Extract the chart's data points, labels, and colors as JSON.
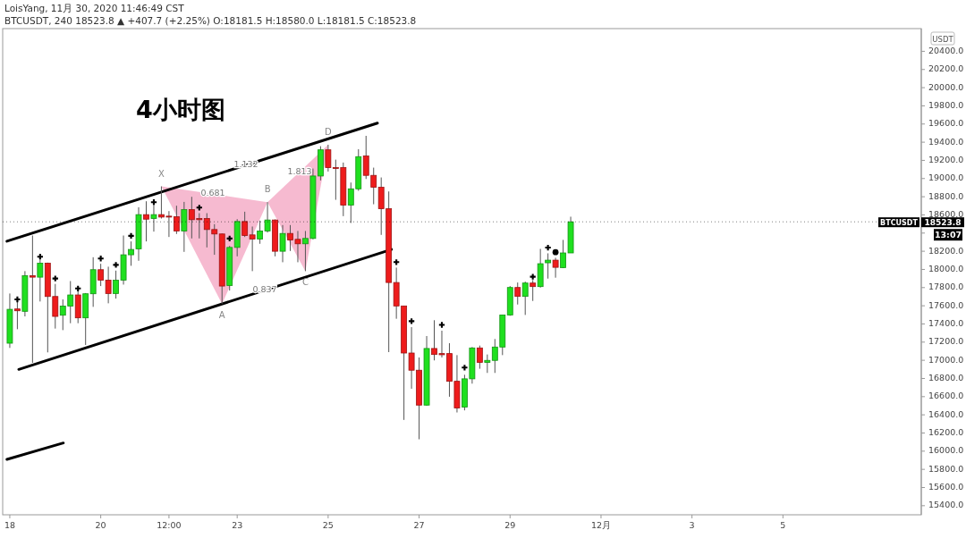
{
  "chart_data": {
    "type": "candlestick",
    "title": "LoisYang, 11月 30, 2020 11:46:49 CST",
    "subtitle": "BTCUSDT, 240 18523.8 ▲ +407.7 (+2.25%) O:18181.5 H:18580.0 L:18181.5 C:18523.8",
    "ylabel": "USDT",
    "x": [
      "2020-11-18T00:00",
      "2020-11-18T04:00",
      "2020-11-18T08:00",
      "2020-11-18T12:00",
      "2020-11-18T16:00",
      "2020-11-18T20:00",
      "2020-11-19T00:00",
      "2020-11-19T04:00",
      "2020-11-19T08:00",
      "2020-11-19T12:00",
      "2020-11-19T16:00",
      "2020-11-19T20:00",
      "2020-11-20T00:00",
      "2020-11-20T04:00",
      "2020-11-20T08:00",
      "2020-11-20T12:00",
      "2020-11-20T16:00",
      "2020-11-20T20:00",
      "2020-11-21T00:00",
      "2020-11-21T04:00",
      "2020-11-21T08:00",
      "2020-11-21T12:00",
      "2020-11-21T16:00",
      "2020-11-21T20:00",
      "2020-11-22T00:00",
      "2020-11-22T04:00",
      "2020-11-22T08:00",
      "2020-11-22T12:00",
      "2020-11-22T16:00",
      "2020-11-22T20:00",
      "2020-11-23T00:00",
      "2020-11-23T04:00",
      "2020-11-23T08:00",
      "2020-11-23T12:00",
      "2020-11-23T16:00",
      "2020-11-23T20:00",
      "2020-11-24T00:00",
      "2020-11-24T04:00",
      "2020-11-24T08:00",
      "2020-11-24T12:00",
      "2020-11-24T16:00",
      "2020-11-24T20:00",
      "2020-11-25T00:00",
      "2020-11-25T04:00",
      "2020-11-25T08:00",
      "2020-11-25T12:00",
      "2020-11-25T16:00",
      "2020-11-25T20:00",
      "2020-11-26T00:00",
      "2020-11-26T04:00",
      "2020-11-26T08:00",
      "2020-11-26T12:00",
      "2020-11-26T16:00",
      "2020-11-26T20:00",
      "2020-11-27T00:00",
      "2020-11-27T04:00",
      "2020-11-27T08:00",
      "2020-11-27T12:00",
      "2020-11-27T16:00",
      "2020-11-27T20:00",
      "2020-11-28T00:00",
      "2020-11-28T04:00",
      "2020-11-28T08:00",
      "2020-11-28T12:00",
      "2020-11-28T16:00",
      "2020-11-28T20:00",
      "2020-11-29T00:00",
      "2020-11-29T04:00",
      "2020-11-29T08:00",
      "2020-11-29T12:00",
      "2020-11-29T16:00",
      "2020-11-29T20:00",
      "2020-11-30T00:00",
      "2020-11-30T04:00",
      "2020-11-30T08:00"
    ],
    "ohlc": [
      [
        17188,
        17735,
        17136,
        17561
      ],
      [
        17565,
        17686,
        17342,
        17545
      ],
      [
        17539,
        17981,
        17483,
        17931
      ],
      [
        17931,
        18373,
        16972,
        17915
      ],
      [
        17915,
        18111,
        17647,
        18069
      ],
      [
        18069,
        18075,
        17087,
        17702
      ],
      [
        17702,
        17840,
        17349,
        17483
      ],
      [
        17496,
        17670,
        17332,
        17597
      ],
      [
        17597,
        17872,
        17408,
        17719
      ],
      [
        17719,
        17774,
        17408,
        17467
      ],
      [
        17467,
        17740,
        17169,
        17732
      ],
      [
        17732,
        18134,
        17588,
        17997
      ],
      [
        17997,
        18062,
        17817,
        17882
      ],
      [
        17882,
        18030,
        17627,
        17735
      ],
      [
        17735,
        17987,
        17679,
        17882
      ],
      [
        17882,
        18373,
        17833,
        18161
      ],
      [
        18161,
        18308,
        18040,
        18220
      ],
      [
        18226,
        18684,
        18095,
        18603
      ],
      [
        18603,
        18750,
        18308,
        18553
      ],
      [
        18560,
        18734,
        18416,
        18603
      ],
      [
        18603,
        18914,
        18560,
        18576
      ],
      [
        18586,
        18642,
        18357,
        18576
      ],
      [
        18580,
        18701,
        18390,
        18423
      ],
      [
        18423,
        18743,
        18193,
        18658
      ],
      [
        18658,
        18799,
        18341,
        18547
      ],
      [
        18560,
        18619,
        18341,
        18547
      ],
      [
        18560,
        18619,
        18242,
        18439
      ],
      [
        18439,
        18498,
        18161,
        18390
      ],
      [
        18390,
        18395,
        17620,
        17817
      ],
      [
        17823,
        18259,
        17768,
        18242
      ],
      [
        18242,
        18553,
        18144,
        18527
      ],
      [
        18527,
        18635,
        18357,
        18373
      ],
      [
        18380,
        18472,
        17981,
        18334
      ],
      [
        18334,
        18537,
        18282,
        18423
      ],
      [
        18423,
        18740,
        18406,
        18544
      ],
      [
        18544,
        18550,
        18144,
        18200
      ],
      [
        18200,
        18488,
        18079,
        18396
      ],
      [
        18396,
        18488,
        18203,
        18324
      ],
      [
        18331,
        18423,
        18079,
        18282
      ],
      [
        18282,
        18423,
        17981,
        18341
      ],
      [
        18341,
        19110,
        18330,
        19028
      ],
      [
        19028,
        19356,
        18979,
        19316
      ],
      [
        19316,
        19372,
        19077,
        19120
      ],
      [
        19120,
        19208,
        18766,
        19113
      ],
      [
        19120,
        19176,
        18586,
        18707
      ],
      [
        18707,
        18956,
        18511,
        18887
      ],
      [
        18887,
        19323,
        18865,
        19241
      ],
      [
        19248,
        19470,
        18995,
        19035
      ],
      [
        19035,
        19120,
        18717,
        18904
      ],
      [
        18904,
        19012,
        18380,
        18668
      ],
      [
        18668,
        18858,
        17090,
        17856
      ],
      [
        17856,
        18020,
        17457,
        17598
      ],
      [
        17598,
        17600,
        16344,
        17080
      ],
      [
        17080,
        17365,
        16687,
        16891
      ],
      [
        16891,
        17031,
        16131,
        16507
      ],
      [
        16507,
        17267,
        16500,
        17130
      ],
      [
        17130,
        17441,
        16999,
        17064
      ],
      [
        17074,
        17326,
        17031,
        17061
      ],
      [
        17074,
        17188,
        16599,
        16769
      ],
      [
        16769,
        17057,
        16426,
        16475
      ],
      [
        16485,
        16841,
        16449,
        16796
      ],
      [
        16796,
        17146,
        16743,
        17136
      ],
      [
        17136,
        17162,
        16907,
        16976
      ],
      [
        16976,
        17064,
        16861,
        16999
      ],
      [
        16999,
        17234,
        16861,
        17146
      ],
      [
        17146,
        17500,
        17057,
        17499
      ],
      [
        17499,
        17817,
        17490,
        17801
      ],
      [
        17801,
        17856,
        17614,
        17703
      ],
      [
        17703,
        17866,
        17499,
        17850
      ],
      [
        17850,
        17883,
        17653,
        17811
      ],
      [
        17811,
        18226,
        17800,
        18063
      ],
      [
        18073,
        18177,
        17899,
        18102
      ],
      [
        18102,
        18128,
        17909,
        18023
      ],
      [
        18020,
        18325,
        18014,
        18181.5
      ],
      [
        18181.5,
        18580,
        18181.5,
        18523.8
      ]
    ],
    "colors": [
      "#1fe01f",
      "#ee1c1c",
      "#1fe01f",
      "#ee1c1c",
      "#1fe01f",
      "#ee1c1c",
      "#ee1c1c",
      "#1fe01f",
      "#1fe01f",
      "#ee1c1c",
      "#1fe01f",
      "#1fe01f",
      "#ee1c1c",
      "#ee1c1c",
      "#1fe01f",
      "#1fe01f",
      "#1fe01f",
      "#1fe01f",
      "#ee1c1c",
      "#1fe01f",
      "#ee1c1c",
      "#ee1c1c",
      "#ee1c1c",
      "#1fe01f",
      "#ee1c1c",
      "#ee1c1c",
      "#ee1c1c",
      "#ee1c1c",
      "#ee1c1c",
      "#1fe01f",
      "#1fe01f",
      "#ee1c1c",
      "#ee1c1c",
      "#1fe01f",
      "#1fe01f",
      "#ee1c1c",
      "#1fe01f",
      "#ee1c1c",
      "#ee1c1c",
      "#1fe01f",
      "#1fe01f",
      "#1fe01f",
      "#ee1c1c",
      "#ee1c1c",
      "#ee1c1c",
      "#1fe01f",
      "#1fe01f",
      "#ee1c1c",
      "#ee1c1c",
      "#ee1c1c",
      "#ee1c1c",
      "#ee1c1c",
      "#ee1c1c",
      "#ee1c1c",
      "#ee1c1c",
      "#1fe01f",
      "#ee1c1c",
      "#ee1c1c",
      "#ee1c1c",
      "#ee1c1c",
      "#1fe01f",
      "#1fe01f",
      "#ee1c1c",
      "#1fe01f",
      "#1fe01f",
      "#1fe01f",
      "#1fe01f",
      "#ee1c1c",
      "#1fe01f",
      "#ee1c1c",
      "#1fe01f",
      "#1fe01f",
      "#ee1c1c",
      "#1fe01f",
      "#1fe01f"
    ],
    "series": [
      {
        "type": "line",
        "color": "#000000",
        "x": [
          "2020-11-17T22:30",
          "2020-11-26T02:00"
        ],
        "values": [
          18310,
          19610
        ]
      },
      {
        "type": "line",
        "color": "#000000",
        "x": [
          "2020-11-18T04:45",
          "2020-11-26T09:25"
        ],
        "values": [
          16900,
          18220
        ]
      },
      {
        "type": "line",
        "color": "#000000",
        "x": [
          "2020-11-17T22:30",
          "2020-11-19T04:15"
        ],
        "values": [
          15910,
          16090
        ]
      },
      {
        "type": "scatter",
        "marker": "cross",
        "color": "#000000",
        "x": [
          "2020-11-18T04:00",
          "2020-11-18T16:00",
          "2020-11-19T00:00",
          "2020-11-19T12:00",
          "2020-11-20T00:00",
          "2020-11-20T08:00",
          "2020-11-20T16:00",
          "2020-11-21T04:00",
          "2020-11-22T04:00",
          "2020-11-22T20:00",
          "2020-11-26T12:00",
          "2020-11-26T20:00",
          "2020-11-27T12:00",
          "2020-11-28T00:00",
          "2020-11-29T12:00",
          "2020-11-29T20:00"
        ],
        "values": [
          17670,
          18140,
          17900,
          17790,
          18120,
          18050,
          18370,
          18740,
          18680,
          18340,
          18080,
          17430,
          17390,
          16920,
          17920,
          18240
        ]
      },
      {
        "type": "scatter",
        "marker": "circle",
        "color": "#000000",
        "x": [
          "2020-11-30T00:00"
        ],
        "values": [
          18190
        ]
      }
    ],
    "annotations": [
      {
        "text": "X",
        "x": "2020-11-21T08:00",
        "y": 18914
      },
      {
        "text": "A",
        "x": "2020-11-22T16:00",
        "y": 17620
      },
      {
        "text": "B",
        "x": "2020-11-23T16:00",
        "y": 18740
      },
      {
        "text": "C",
        "x": "2020-11-24T12:00",
        "y": 17981
      },
      {
        "text": "D",
        "x": "2020-11-25T00:00",
        "y": 19372
      },
      "0.681",
      "1.132",
      "1.813",
      "0.837",
      "4小时图",
      "18523.8",
      "13:07"
    ],
    "ref_lines": [
      {
        "axis": "y",
        "value": 18523.8,
        "label": "BTCUSDT",
        "line_style": "dotted"
      }
    ],
    "xlim": [
      "2020-11-17T20:15",
      "2020-12-08T01:00"
    ],
    "xticks": [
      {
        "value": "2020-11-18",
        "label": "18"
      },
      {
        "value": "2020-11-20",
        "label": "20"
      },
      {
        "value": "2020-11-21T12:00",
        "label": "12:00"
      },
      {
        "value": "2020-11-23",
        "label": "23"
      },
      {
        "value": "2020-11-25",
        "label": "25"
      },
      {
        "value": "2020-11-27",
        "label": "27"
      },
      {
        "value": "2020-11-29",
        "label": "29"
      },
      {
        "value": "2020-12-01",
        "label": "12月"
      },
      {
        "value": "2020-12-03",
        "label": "3"
      },
      {
        "value": "2020-12-05",
        "label": "5"
      }
    ],
    "ylim": [
      15300,
      20650
    ],
    "yticks": [
      {
        "value": 15400,
        "label": "15400.0"
      },
      {
        "value": 15600,
        "label": "15600.0"
      },
      {
        "value": 15800,
        "label": "15800.0"
      },
      {
        "value": 16000,
        "label": "16000.0"
      },
      {
        "value": 16200,
        "label": "16200.0"
      },
      {
        "value": 16400,
        "label": "16400.0"
      },
      {
        "value": 16600,
        "label": "16600.0"
      },
      {
        "value": 16800,
        "label": "16800.0"
      },
      {
        "value": 17000,
        "label": "17000.0"
      },
      {
        "value": 17200,
        "label": "17200.0"
      },
      {
        "value": 17400,
        "label": "17400.0"
      },
      {
        "value": 17600,
        "label": "17600.0"
      },
      {
        "value": 17800,
        "label": "17800.0"
      },
      {
        "value": 18000,
        "label": "18000.0"
      },
      {
        "value": 18200,
        "label": "18200.0"
      },
      {
        "value": 18400,
        "label": null
      },
      {
        "value": 18600,
        "label": "18600.0"
      },
      {
        "value": 18800,
        "label": "18800.0"
      },
      {
        "value": 19000,
        "label": "19000.0"
      },
      {
        "value": 19200,
        "label": "19200.0"
      },
      {
        "value": 19400,
        "label": "19400.0"
      },
      {
        "value": 19600,
        "label": "19600.0"
      },
      {
        "value": 19800,
        "label": "19800.0"
      },
      {
        "value": 20000,
        "label": "20000.0"
      },
      {
        "value": 20200,
        "label": "20200.0"
      },
      {
        "value": 20400,
        "label": "20400.0"
      }
    ]
  }
}
